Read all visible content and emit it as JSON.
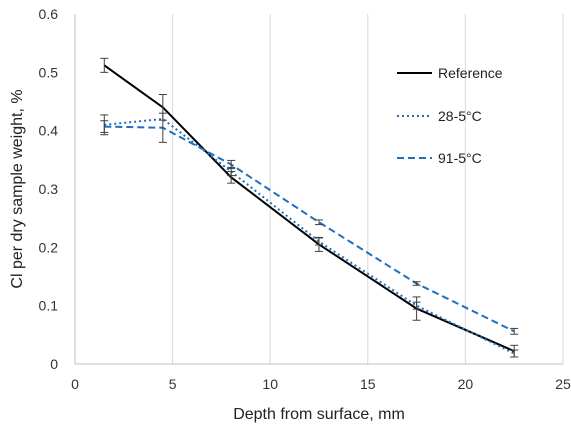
{
  "chart_data": {
    "type": "line",
    "title": "",
    "xlabel": "Depth from surface, mm",
    "ylabel": "Cl per dry sample weight, %",
    "xlim": [
      0,
      25
    ],
    "ylim": [
      0,
      0.6
    ],
    "x_ticks": [
      0,
      5,
      10,
      15,
      20,
      25
    ],
    "y_ticks": [
      0,
      0.1,
      0.2,
      0.3,
      0.4,
      0.5,
      0.6
    ],
    "x_tick_labels": [
      "0",
      "5",
      "10",
      "15",
      "20",
      "25"
    ],
    "y_tick_labels": [
      "0",
      "0.1",
      "0.2",
      "0.3",
      "0.4",
      "0.5",
      "0.6"
    ],
    "grid": "vertical",
    "legend_position": "right",
    "x": [
      1.5,
      4.5,
      8,
      12.5,
      17.5,
      22.5
    ],
    "series": [
      {
        "name": "Reference",
        "values": [
          0.512,
          0.44,
          0.32,
          0.205,
          0.095,
          0.022
        ],
        "errors": [
          0.012,
          0.022,
          0.01,
          0.012,
          0.02,
          0.01
        ],
        "color": "#000000",
        "line_style": "solid"
      },
      {
        "name": "28-5°C",
        "values": [
          0.41,
          0.42,
          0.33,
          0.21,
          0.1,
          0.018
        ],
        "errors": [
          0.017,
          0.0,
          0.007,
          0.006,
          0.006,
          0.006
        ],
        "color": "#1f6fbf",
        "line_style": "dotted"
      },
      {
        "name": "91-5°C",
        "values": [
          0.407,
          0.405,
          0.342,
          0.243,
          0.138,
          0.056
        ],
        "errors": [
          0.01,
          0.025,
          0.007,
          0.004,
          0.003,
          0.005
        ],
        "color": "#1f6fbf",
        "line_style": "dashed"
      }
    ]
  }
}
